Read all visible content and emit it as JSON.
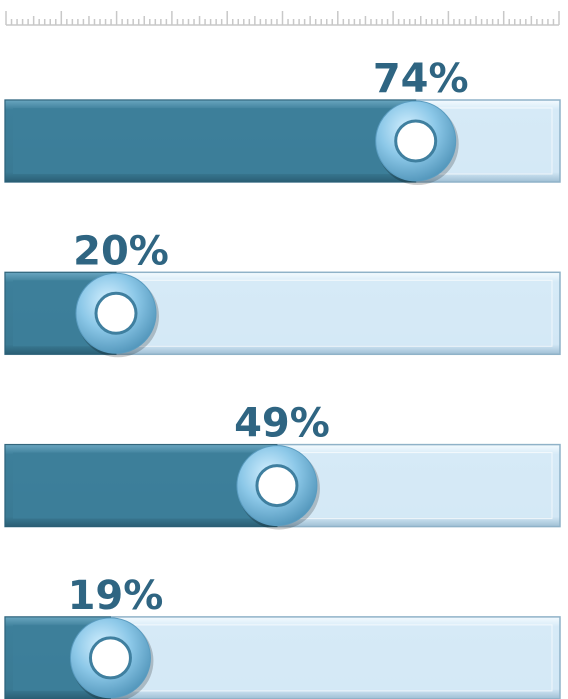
{
  "chart_data": {
    "type": "bar",
    "values": [
      74,
      20,
      49,
      19
    ],
    "value_labels": [
      "74%",
      "20%",
      "49%",
      "19%"
    ],
    "xlim": [
      0,
      100
    ],
    "color": "#3d7f9a",
    "track_color": "#d6eaf7",
    "label_color": "#2f6582"
  }
}
